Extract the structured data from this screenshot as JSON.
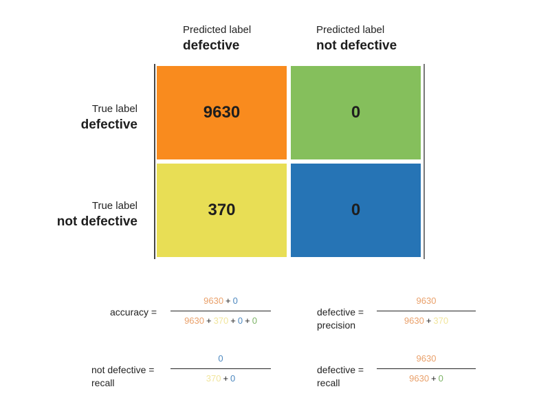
{
  "columns": [
    {
      "top": "Predicted label",
      "bold": "defective"
    },
    {
      "top": "Predicted label",
      "bold": "not defective"
    }
  ],
  "rows": [
    {
      "top": "True label",
      "bold": "defective"
    },
    {
      "top": "True label",
      "bold": "not defective"
    }
  ],
  "matrix": {
    "tp": {
      "value": "9630",
      "color": "#f98b1e"
    },
    "fn": {
      "value": "0",
      "color": "#85bf5c"
    },
    "fp": {
      "value": "370",
      "color": "#e8de55"
    },
    "tn": {
      "value": "0",
      "color": "#2674b5"
    }
  },
  "formulas": {
    "accuracy": {
      "label": "accuracy =",
      "num": [
        "9630",
        "0"
      ],
      "den": [
        "9630",
        "370",
        "0",
        "0"
      ]
    },
    "defective_precision": {
      "label_line1": "defective =",
      "label_line2": "precision",
      "num": [
        "9630"
      ],
      "den": [
        "9630",
        "370"
      ]
    },
    "not_defective_recall": {
      "label_line1": "not defective =",
      "label_line2": "recall",
      "num": [
        "0"
      ],
      "den": [
        "370",
        "0"
      ]
    },
    "defective_recall": {
      "label_line1": "defective =",
      "label_line2": "recall",
      "num": [
        "9630"
      ],
      "den": [
        "9630",
        "0"
      ]
    }
  },
  "operators": {
    "plus": "+"
  }
}
